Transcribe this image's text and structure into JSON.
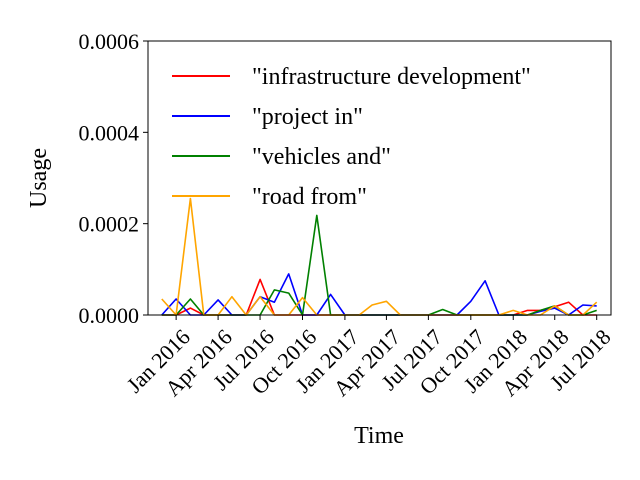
{
  "chart_data": {
    "type": "line",
    "title": "",
    "xlabel": "Time",
    "ylabel": "Usage",
    "ylim": [
      0,
      0.0006
    ],
    "xlim": [
      "2015-11-01",
      "2018-08-01"
    ],
    "y_ticks": [
      {
        "value": 0,
        "label": "0.0000"
      },
      {
        "value": 0.0002,
        "label": "0.0002"
      },
      {
        "value": 0.0004,
        "label": "0.0004"
      },
      {
        "value": 0.0006,
        "label": "0.0006"
      }
    ],
    "x_ticks": [
      {
        "value": "2016-01-01",
        "label": "Jan 2016"
      },
      {
        "value": "2016-04-01",
        "label": "Apr 2016"
      },
      {
        "value": "2016-07-01",
        "label": "Jul 2016"
      },
      {
        "value": "2016-10-01",
        "label": "Oct 2016"
      },
      {
        "value": "2017-01-01",
        "label": "Jan 2017"
      },
      {
        "value": "2017-04-01",
        "label": "Apr 2017"
      },
      {
        "value": "2017-07-01",
        "label": "Jul 2017"
      },
      {
        "value": "2017-10-01",
        "label": "Oct 2017"
      },
      {
        "value": "2018-01-01",
        "label": "Jan 2018"
      },
      {
        "value": "2018-04-01",
        "label": "Apr 2018"
      },
      {
        "value": "2018-07-01",
        "label": "Jul 2018"
      }
    ],
    "grid": false,
    "legend_position": "top-left",
    "x": [
      "2015-12-01",
      "2016-01-01",
      "2016-02-01",
      "2016-03-01",
      "2016-04-01",
      "2016-05-01",
      "2016-06-01",
      "2016-07-01",
      "2016-08-01",
      "2016-09-01",
      "2016-10-01",
      "2016-11-01",
      "2016-12-01",
      "2017-01-01",
      "2017-02-01",
      "2017-03-01",
      "2017-04-01",
      "2017-05-01",
      "2017-06-01",
      "2017-07-01",
      "2017-08-01",
      "2017-09-01",
      "2017-10-01",
      "2017-11-01",
      "2017-12-01",
      "2018-01-01",
      "2018-02-01",
      "2018-03-01",
      "2018-04-01",
      "2018-05-01",
      "2018-06-01",
      "2018-07-01"
    ],
    "series": [
      {
        "name": "\"infrastructure development\"",
        "color": "#ff0000",
        "values": [
          0,
          0,
          1.5e-05,
          0,
          0,
          0,
          0,
          7.8e-05,
          0,
          0,
          0,
          0,
          0,
          0,
          0,
          0,
          0,
          0,
          0,
          0,
          0,
          0,
          0,
          0,
          0,
          0,
          1e-05,
          1e-05,
          1.8e-05,
          2.8e-05,
          0,
          0
        ]
      },
      {
        "name": "\"project in\"",
        "color": "#0000ff",
        "values": [
          0,
          3.5e-05,
          0,
          0,
          3.3e-05,
          0,
          0,
          4e-05,
          2.8e-05,
          9e-05,
          0,
          0,
          4.5e-05,
          0,
          0,
          0,
          0,
          0,
          0,
          0,
          0,
          0,
          3e-05,
          7.5e-05,
          0,
          0,
          0,
          8e-06,
          1.5e-05,
          0,
          2.2e-05,
          2e-05
        ]
      },
      {
        "name": "\"vehicles and\"",
        "color": "#008000",
        "values": [
          0,
          0,
          3.5e-05,
          0,
          0,
          0,
          0,
          0,
          5.5e-05,
          4.8e-05,
          0,
          0.000218,
          0,
          0,
          0,
          0,
          0,
          0,
          0,
          0,
          1.2e-05,
          0,
          0,
          0,
          0,
          0,
          0,
          1e-05,
          2e-05,
          0,
          0,
          1e-05
        ]
      },
      {
        "name": "\"road from\"",
        "color": "#ffa500",
        "values": [
          3.5e-05,
          0,
          0.000255,
          0,
          0,
          4e-05,
          0,
          4e-05,
          0,
          0,
          3.8e-05,
          0,
          0,
          0,
          0,
          2.2e-05,
          3e-05,
          0,
          0,
          0,
          0,
          0,
          0,
          0,
          0,
          1e-05,
          0,
          0,
          2e-05,
          0,
          0,
          2.8e-05
        ]
      }
    ]
  }
}
